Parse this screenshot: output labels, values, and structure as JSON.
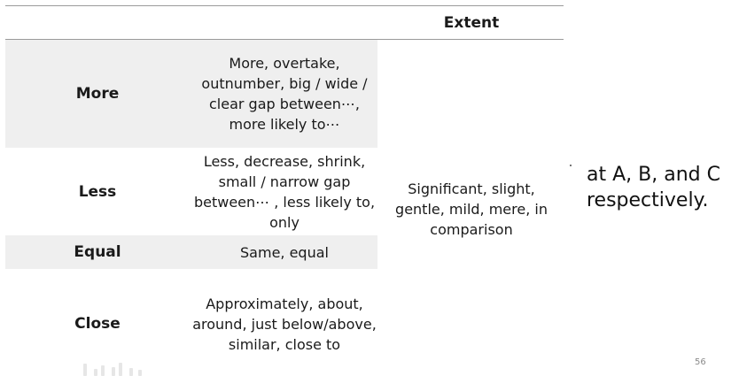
{
  "table": {
    "header": {
      "label": "",
      "description": "",
      "extent": "Extent"
    },
    "rows": [
      {
        "label": "More",
        "description": "More, overtake, outnumber, big / wide / clear gap between⋯, more likely to⋯",
        "shaded": true
      },
      {
        "label": "Less",
        "description": "Less, decrease, shrink, small / narrow gap between⋯ , less likely to, only",
        "shaded": false
      },
      {
        "label": "Equal",
        "description": "Same, equal",
        "shaded": true
      },
      {
        "label": "Close",
        "description": "Approximately, about, around, just below/above, similar, close to",
        "shaded": false
      }
    ],
    "extent_words": "Significant, slight, gentle, mild, mere, in comparison"
  },
  "side_text": {
    "line1": "at A, B, and C",
    "line2": "respectively."
  },
  "page_number": "56",
  "colors": {
    "shade": "#efefef",
    "rule": "#9a9a9a",
    "text": "#1a1a1a"
  }
}
